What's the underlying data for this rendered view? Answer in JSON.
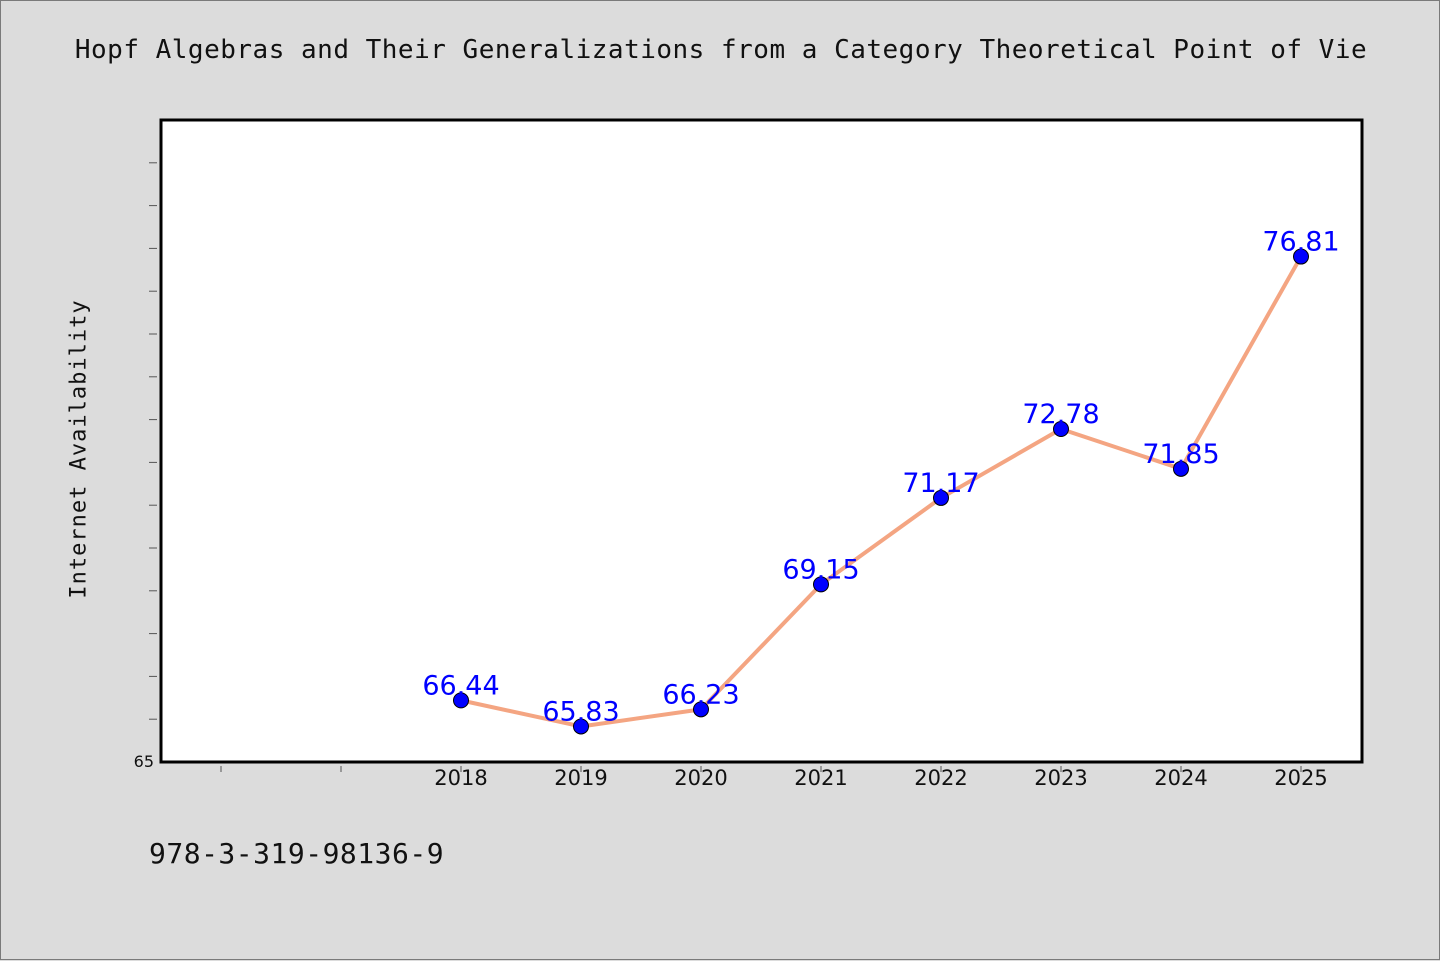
{
  "chart_data": {
    "type": "line",
    "title": "Hopf Algebras and Their Generalizations from a Category Theoretical Point of Vie",
    "xlabel": "",
    "ylabel": "Internet Availability",
    "categories": [
      "2018",
      "2019",
      "2020",
      "2021",
      "2022",
      "2023",
      "2024",
      "2025"
    ],
    "values": [
      66.44,
      65.83,
      66.23,
      69.15,
      71.17,
      72.78,
      71.85,
      76.81
    ],
    "data_labels": [
      "66.44",
      "65.83",
      "66.23",
      "69.15",
      "71.17",
      "72.78",
      "71.85",
      "76.81"
    ],
    "ylim": [
      65,
      80
    ],
    "y_tick_label": "65",
    "grid": false,
    "line_color": "#f4a582",
    "marker_color": "#0000ff",
    "label_color": "#0000ff"
  },
  "footer": {
    "isbn": "978-3-319-98136-9"
  }
}
